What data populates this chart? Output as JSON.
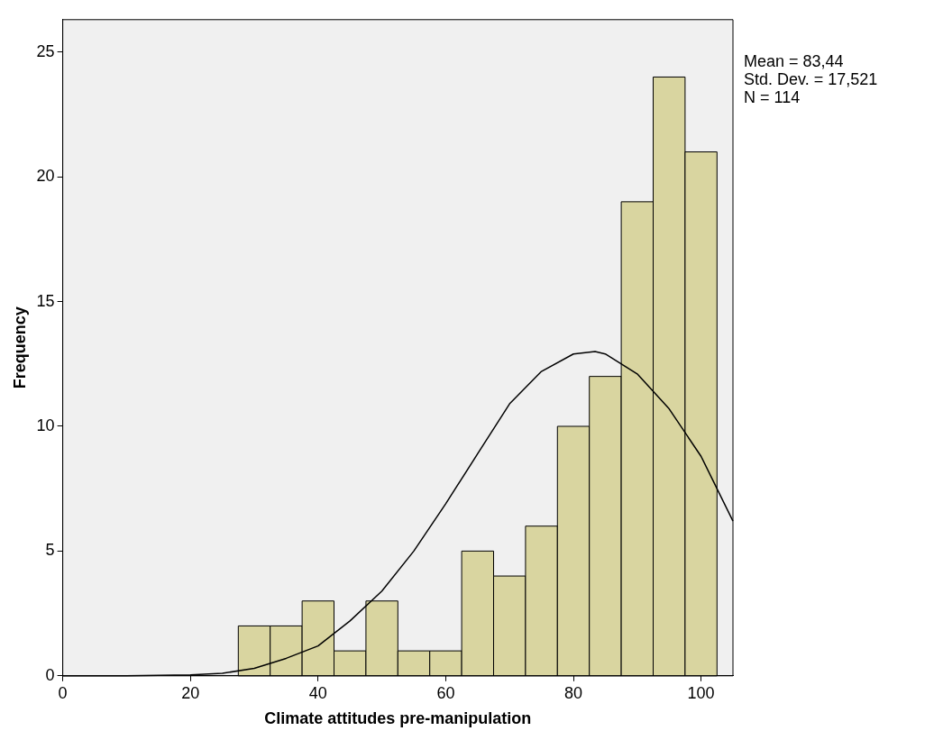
{
  "chart_data": {
    "type": "histogram",
    "xlabel": "Climate attitudes pre-manipulation",
    "ylabel": "Frequency",
    "bins": [
      27.5,
      32.5,
      37.5,
      42.5,
      47.5,
      52.5,
      57.5,
      62.5,
      67.5,
      72.5,
      77.5,
      82.5,
      87.5,
      92.5,
      97.5,
      102.5
    ],
    "values": [
      2,
      2,
      3,
      1,
      3,
      1,
      1,
      5,
      4,
      6,
      10,
      12,
      19,
      24,
      21
    ],
    "color": "#d9d5a0",
    "series": [
      {
        "type": "line",
        "color": "#000000",
        "x": [
          0,
          10,
          20,
          25,
          30,
          35,
          40,
          45,
          50,
          55,
          60,
          65,
          70,
          75,
          80,
          83.4,
          85,
          90,
          95,
          100,
          105
        ],
        "values": [
          0,
          0,
          0.04,
          0.1,
          0.3,
          0.7,
          1.2,
          2.2,
          3.4,
          5.0,
          6.9,
          8.9,
          10.9,
          12.2,
          12.9,
          13,
          12.9,
          12.1,
          10.7,
          8.8,
          6.2
        ]
      }
    ],
    "xlim": [
      0,
      105
    ],
    "xticks": [
      0,
      20,
      40,
      60,
      80,
      100
    ],
    "ylim": [
      0,
      26.3
    ],
    "yticks": [
      0,
      5,
      10,
      15,
      20,
      25
    ],
    "grid": false,
    "legend": false,
    "annotations": [
      "Mean = 83,44",
      "Std. Dev. = 17,521",
      "N = 114"
    ]
  }
}
